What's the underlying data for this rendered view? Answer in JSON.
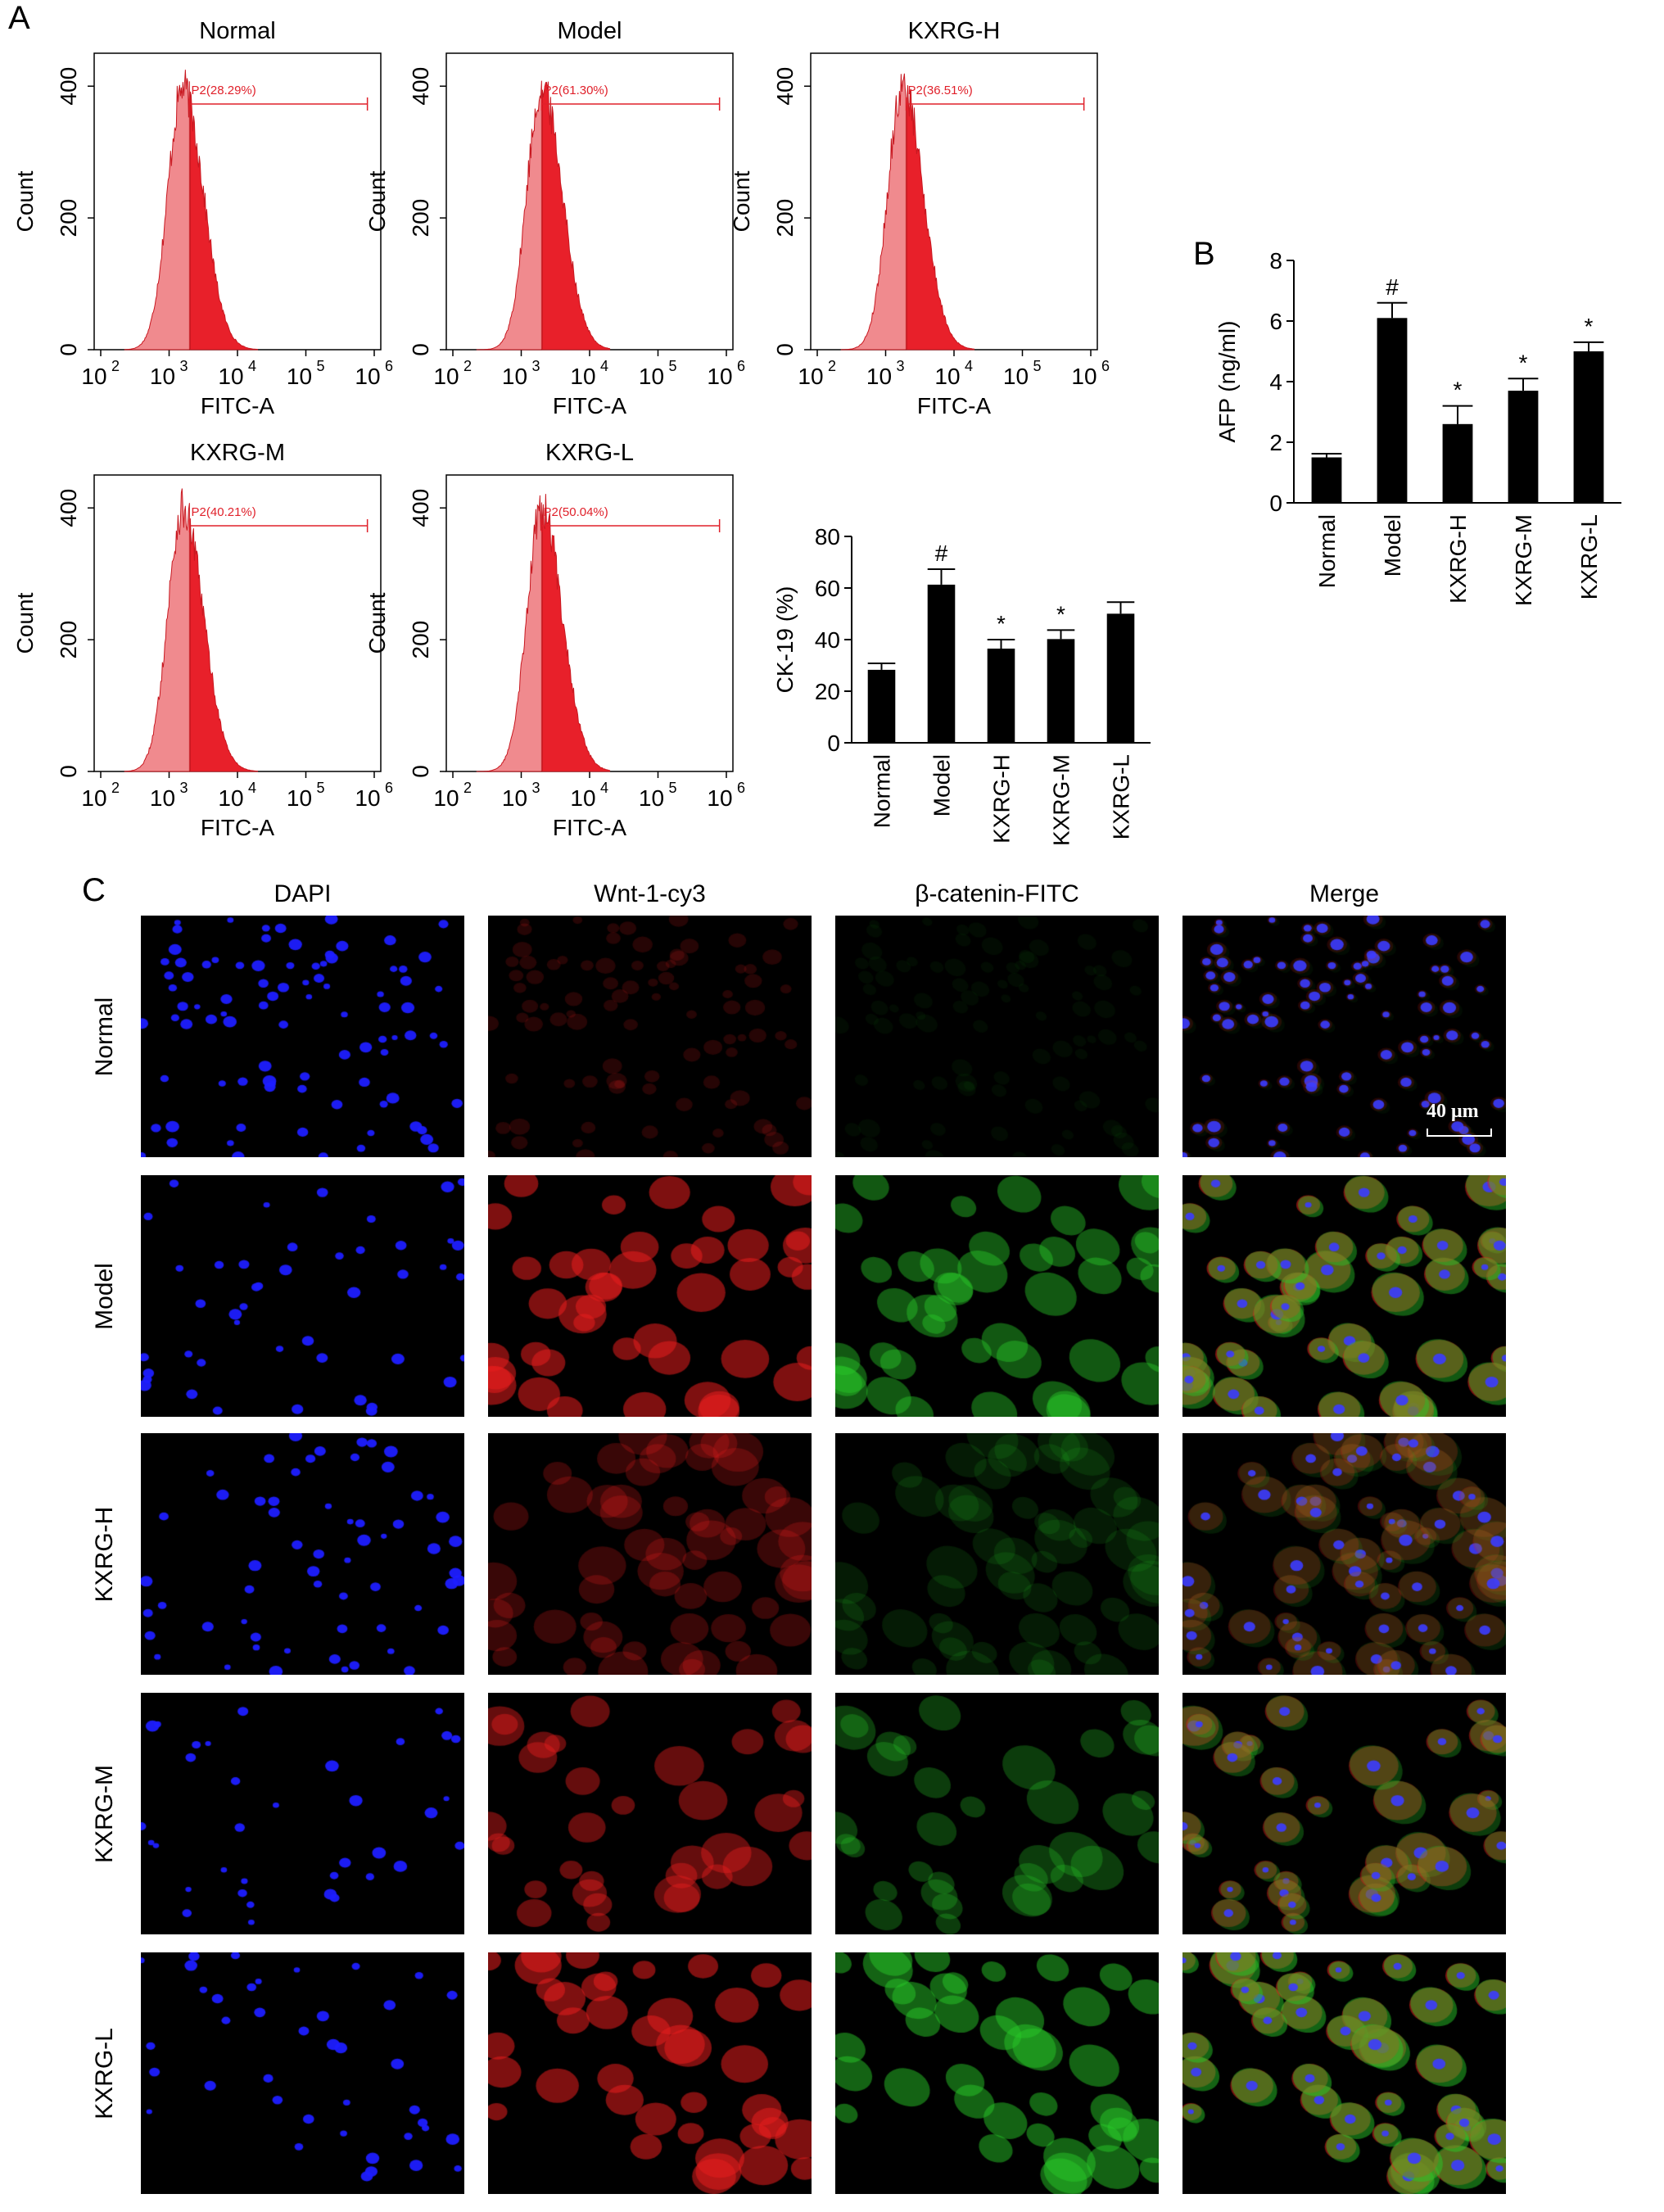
{
  "figure": {
    "panel_labels": [
      "A",
      "B",
      "C"
    ]
  },
  "colors": {
    "histogram_fill": "#e8202a",
    "histogram_fill_light": "#f08a8e",
    "gate_line": "#e0202a",
    "bar_fill": "#000000",
    "dapi": "#1a1aff",
    "cy3": "#ff1a1a",
    "fitc": "#22cc22"
  },
  "histograms": [
    {
      "title": "Normal",
      "gate": "P2(28.29%)",
      "ylabel": "Count",
      "xlabel": "FITC-A",
      "yticks": [
        "0",
        "200",
        "400"
      ],
      "xticks": [
        "10",
        "10",
        "10",
        "10",
        "10"
      ],
      "xtick_exponents": [
        "2",
        "3",
        "4",
        "5",
        "6"
      ],
      "peak_log10": 3.2
    },
    {
      "title": "Model",
      "gate": "P2(61.30%)",
      "ylabel": "Count",
      "xlabel": "FITC-A",
      "yticks": [
        "0",
        "200",
        "400"
      ],
      "xticks": [
        "10",
        "10",
        "10",
        "10",
        "10"
      ],
      "xtick_exponents": [
        "2",
        "3",
        "4",
        "5",
        "6"
      ],
      "peak_log10": 3.3
    },
    {
      "title": "KXRG-H",
      "gate": "P2(36.51%)",
      "ylabel": "Count",
      "xlabel": "FITC-A",
      "yticks": [
        "0",
        "200",
        "400"
      ],
      "xticks": [
        "10",
        "10",
        "10",
        "10",
        "10"
      ],
      "xtick_exponents": [
        "2",
        "3",
        "4",
        "5",
        "6"
      ],
      "peak_log10": 3.25
    },
    {
      "title": "KXRG-M",
      "gate": "P2(40.21%)",
      "ylabel": "Count",
      "xlabel": "FITC-A",
      "yticks": [
        "0",
        "200",
        "400"
      ],
      "xticks": [
        "10",
        "10",
        "10",
        "10",
        "10"
      ],
      "xtick_exponents": [
        "2",
        "3",
        "4",
        "5",
        "6"
      ],
      "peak_log10": 3.2
    },
    {
      "title": "KXRG-L",
      "gate": "P2(50.04%)",
      "ylabel": "Count",
      "xlabel": "FITC-A",
      "yticks": [
        "0",
        "200",
        "400"
      ],
      "xticks": [
        "10",
        "10",
        "10",
        "10",
        "10"
      ],
      "xtick_exponents": [
        "2",
        "3",
        "4",
        "5",
        "6"
      ],
      "peak_log10": 3.3
    }
  ],
  "chart_data": [
    {
      "type": "bar",
      "panel": "A",
      "categories": [
        "Normal",
        "Model",
        "KXRG-H",
        "KXRG-M",
        "KXRG-L"
      ],
      "values": [
        28.29,
        61.3,
        36.51,
        40.21,
        50.04
      ],
      "errors": [
        2.5,
        6.0,
        3.5,
        3.5,
        4.5
      ],
      "annotations": [
        "",
        "#",
        "*",
        "*",
        ""
      ],
      "ylabel": "CK-19 (%)",
      "ylim": [
        0,
        80
      ],
      "yticks": [
        0,
        20,
        40,
        60,
        80
      ]
    },
    {
      "type": "bar",
      "panel": "B",
      "categories": [
        "Normal",
        "Model",
        "KXRG-H",
        "KXRG-M",
        "KXRG-L"
      ],
      "values": [
        1.5,
        6.1,
        2.6,
        3.7,
        5.0
      ],
      "errors": [
        0.12,
        0.5,
        0.6,
        0.4,
        0.3
      ],
      "annotations": [
        "",
        "#",
        "*",
        "*",
        "*"
      ],
      "ylabel": "AFP (ng/ml)",
      "ylim": [
        0,
        8
      ],
      "yticks": [
        0,
        2,
        4,
        6,
        8
      ]
    }
  ],
  "microscopy": {
    "columns": [
      "DAPI",
      "Wnt-1-cy3",
      "β-catenin-FITC",
      "Merge"
    ],
    "rows": [
      "Normal",
      "Model",
      "KXRG-H",
      "KXRG-M",
      "KXRG-L"
    ],
    "scale_bar": "40 μm"
  }
}
